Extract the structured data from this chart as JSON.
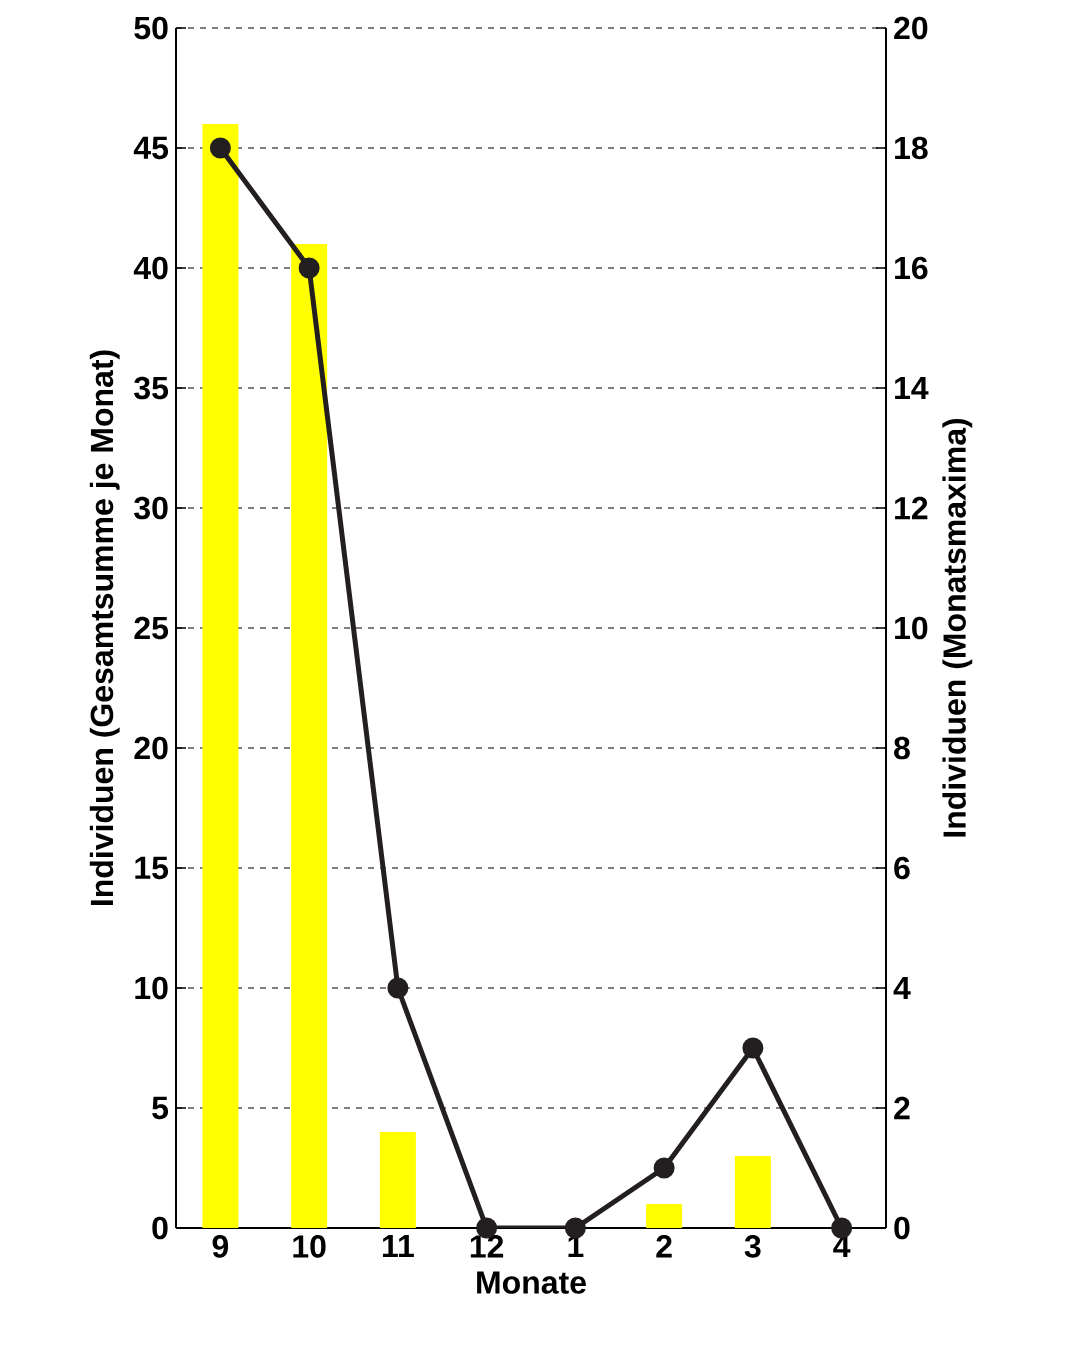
{
  "chart_data": {
    "type": "bar",
    "xlabel": "Monate",
    "ylabel": "Individuen (Gesamtsumme je Monat)",
    "y2label": "Individuen (Monatsmaxima)",
    "categories": [
      "9",
      "10",
      "11",
      "12",
      "1",
      "2",
      "3",
      "4"
    ],
    "series": [
      {
        "color": "#ffff00",
        "values": [
          46,
          41,
          4,
          0,
          0,
          1,
          3,
          0
        ]
      },
      {
        "type": "line",
        "axis": "y2",
        "color": "#231f20",
        "marker": "circle",
        "line_style": "solid",
        "values": [
          18,
          16,
          4,
          0,
          0,
          1,
          3,
          0
        ]
      }
    ],
    "ylim": [
      0,
      50
    ],
    "yticks": [
      0,
      5,
      10,
      15,
      20,
      25,
      30,
      35,
      40,
      45,
      50
    ],
    "y2lim": [
      0,
      20
    ],
    "y2ticks": [
      0,
      2,
      4,
      6,
      8,
      10,
      12,
      14,
      16,
      18,
      20
    ],
    "grid": "y"
  }
}
